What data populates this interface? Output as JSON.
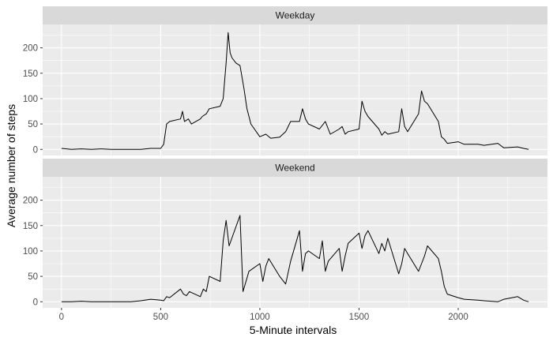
{
  "chart_data": {
    "type": "line",
    "xlabel": "5-Minute intervals",
    "ylabel": "Average number of steps",
    "xlim": [
      -95,
      2450
    ],
    "ylim": [
      -12,
      246
    ],
    "xticks": [
      0,
      500,
      1000,
      1500,
      2000
    ],
    "yticks": [
      0,
      50,
      100,
      150,
      200
    ],
    "x_minor": [
      250,
      750,
      1250,
      1750,
      2250
    ],
    "y_minor": [
      25,
      75,
      125,
      175,
      225
    ],
    "grid": true,
    "colors": {
      "panel_bg": "#EBEBEB",
      "strip_bg": "#D9D9D9",
      "grid_major": "#FFFFFF",
      "line": "#000000"
    },
    "panels": [
      {
        "label": "Weekday",
        "x": [
          0,
          50,
          100,
          150,
          200,
          250,
          300,
          350,
          400,
          450,
          500,
          515,
          530,
          545,
          600,
          610,
          620,
          640,
          655,
          700,
          710,
          730,
          745,
          800,
          815,
          830,
          835,
          840,
          850,
          860,
          880,
          900,
          920,
          935,
          955,
          1000,
          1030,
          1055,
          1100,
          1130,
          1155,
          1200,
          1215,
          1230,
          1245,
          1300,
          1330,
          1355,
          1400,
          1415,
          1430,
          1445,
          1500,
          1515,
          1530,
          1545,
          1600,
          1615,
          1630,
          1645,
          1700,
          1715,
          1730,
          1745,
          1800,
          1815,
          1830,
          1845,
          1900,
          1915,
          1930,
          1945,
          2000,
          2030,
          2100,
          2130,
          2200,
          2230,
          2300,
          2330,
          2355
        ],
        "values": [
          2,
          0,
          1,
          0,
          1,
          0,
          0,
          0,
          0,
          2,
          2,
          10,
          50,
          55,
          60,
          75,
          55,
          60,
          50,
          60,
          65,
          70,
          80,
          85,
          100,
          170,
          200,
          230,
          190,
          180,
          170,
          165,
          120,
          80,
          50,
          25,
          30,
          22,
          24,
          35,
          55,
          55,
          80,
          60,
          50,
          40,
          55,
          30,
          40,
          45,
          30,
          35,
          40,
          95,
          75,
          65,
          40,
          28,
          35,
          30,
          35,
          80,
          45,
          35,
          70,
          115,
          95,
          90,
          55,
          25,
          20,
          12,
          15,
          10,
          10,
          8,
          12,
          3,
          5,
          2,
          0
        ]
      },
      {
        "label": "Weekend",
        "x": [
          0,
          50,
          100,
          150,
          200,
          250,
          300,
          350,
          400,
          450,
          500,
          515,
          530,
          545,
          600,
          615,
          630,
          645,
          700,
          715,
          730,
          745,
          800,
          815,
          830,
          845,
          900,
          915,
          930,
          945,
          1000,
          1015,
          1030,
          1045,
          1100,
          1130,
          1155,
          1200,
          1215,
          1230,
          1245,
          1300,
          1315,
          1330,
          1345,
          1400,
          1415,
          1430,
          1445,
          1500,
          1515,
          1530,
          1545,
          1600,
          1615,
          1630,
          1645,
          1700,
          1715,
          1730,
          1745,
          1800,
          1815,
          1830,
          1845,
          1900,
          1915,
          1930,
          1945,
          2000,
          2030,
          2100,
          2130,
          2200,
          2230,
          2300,
          2330,
          2355
        ],
        "values": [
          0,
          0,
          1,
          0,
          0,
          0,
          0,
          0,
          2,
          5,
          3,
          2,
          10,
          8,
          25,
          15,
          12,
          20,
          10,
          25,
          20,
          50,
          40,
          120,
          160,
          110,
          170,
          20,
          40,
          60,
          75,
          40,
          70,
          85,
          50,
          35,
          80,
          140,
          60,
          95,
          100,
          85,
          120,
          60,
          80,
          105,
          60,
          90,
          115,
          135,
          105,
          130,
          140,
          95,
          115,
          100,
          125,
          55,
          75,
          105,
          95,
          60,
          75,
          90,
          110,
          85,
          60,
          30,
          15,
          8,
          5,
          3,
          2,
          0,
          5,
          10,
          3,
          0
        ]
      }
    ]
  }
}
